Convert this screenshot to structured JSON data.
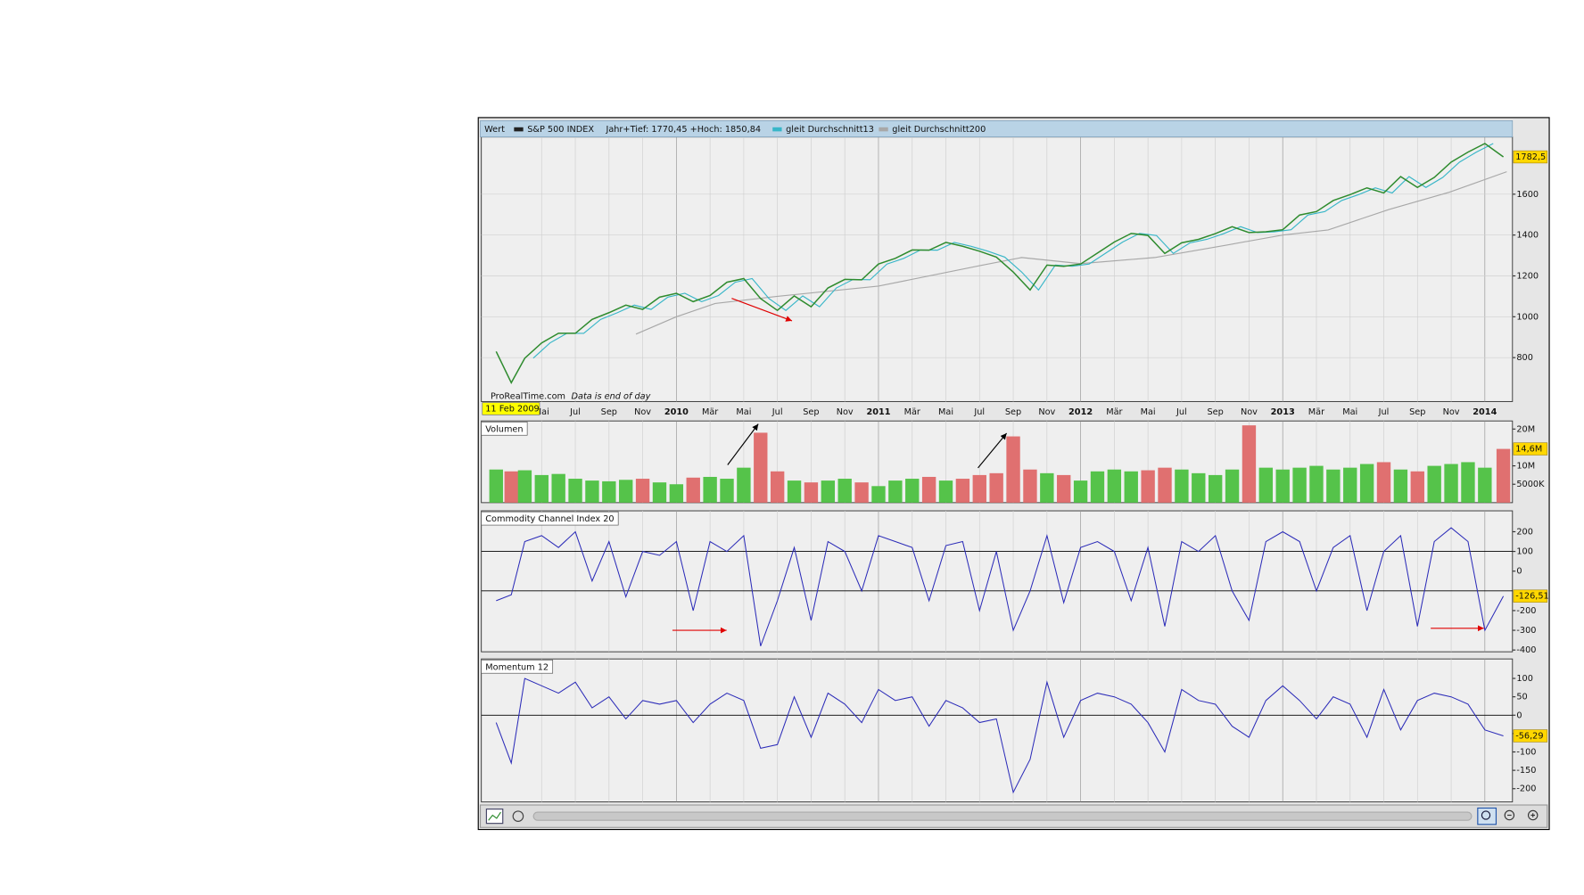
{
  "chart_data": [
    {
      "type": "line",
      "title": "Wert",
      "info": "Jahr+Tief: 1770,45 +Hoch: 1850,84",
      "cursor_label": "11 Feb 2009",
      "source": "ProRealTime.com",
      "source_note": "Data is end of day",
      "xlim": [
        0.42,
        61.64
      ],
      "xticks": [
        {
          "value": 4,
          "label": "Mai"
        },
        {
          "value": 6,
          "label": "Jul"
        },
        {
          "value": 8,
          "label": "Sep"
        },
        {
          "value": 10,
          "label": "Nov"
        },
        {
          "value": 12,
          "label": "2010"
        },
        {
          "value": 14,
          "label": "Mär"
        },
        {
          "value": 16,
          "label": "Mai"
        },
        {
          "value": 18,
          "label": "Jul"
        },
        {
          "value": 20,
          "label": "Sep"
        },
        {
          "value": 22,
          "label": "Nov"
        },
        {
          "value": 24,
          "label": "2011"
        },
        {
          "value": 26,
          "label": "Mär"
        },
        {
          "value": 28,
          "label": "Mai"
        },
        {
          "value": 30,
          "label": "Jul"
        },
        {
          "value": 32,
          "label": "Sep"
        },
        {
          "value": 34,
          "label": "Nov"
        },
        {
          "value": 36,
          "label": "2012"
        },
        {
          "value": 38,
          "label": "Mär"
        },
        {
          "value": 40,
          "label": "Mai"
        },
        {
          "value": 42,
          "label": "Jul"
        },
        {
          "value": 44,
          "label": "Sep"
        },
        {
          "value": 46,
          "label": "Nov"
        },
        {
          "value": 48,
          "label": "2013"
        },
        {
          "value": 50,
          "label": "Mär"
        },
        {
          "value": 52,
          "label": "Mai"
        },
        {
          "value": 54,
          "label": "Jul"
        },
        {
          "value": 56,
          "label": "Sep"
        },
        {
          "value": 58,
          "label": "Nov"
        },
        {
          "value": 60,
          "label": "2014"
        }
      ],
      "ylim": [
        585,
        1880
      ],
      "yticks": [
        800,
        1000,
        1200,
        1400,
        1600
      ],
      "grid": true,
      "last_label": "1782,5",
      "series": [
        {
          "name": "S&P 500 INDEX",
          "color": "#2e8b2e",
          "x": [
            1.3,
            2.2,
            3,
            4,
            5,
            6,
            7,
            8,
            9,
            10,
            11,
            12,
            13,
            14,
            15,
            16,
            17,
            18,
            19,
            20,
            21,
            22,
            23,
            24,
            25,
            26,
            27,
            28,
            29,
            30,
            31,
            32,
            33,
            34,
            35,
            36,
            37,
            38,
            39,
            40,
            41,
            42,
            43,
            44,
            45,
            46,
            47,
            48,
            49,
            50,
            51,
            52,
            53,
            54,
            55,
            56,
            57,
            58,
            59,
            60,
            61.1
          ],
          "values": [
            830,
            677,
            797,
            872,
            919,
            919,
            987,
            1020,
            1057,
            1036,
            1096,
            1115,
            1074,
            1104,
            1169,
            1187,
            1089,
            1031,
            1102,
            1049,
            1141,
            1183,
            1181,
            1258,
            1286,
            1327,
            1326,
            1364,
            1345,
            1321,
            1292,
            1219,
            1131,
            1253,
            1247,
            1258,
            1312,
            1366,
            1408,
            1398,
            1310,
            1362,
            1379,
            1407,
            1441,
            1412,
            1416,
            1426,
            1498,
            1515,
            1569,
            1598,
            1631,
            1606,
            1686,
            1633,
            1682,
            1757,
            1806,
            1848,
            1782.5
          ]
        },
        {
          "name": "gleit Durchschnitt13",
          "color": "#38b6c8",
          "x": [
            3.5,
            4.5,
            5.5,
            6.5,
            7.5,
            8.5,
            9.5,
            10.5,
            11.5,
            12.5,
            13.5,
            14.5,
            15.5,
            16.5,
            17.5,
            18.5,
            19.5,
            20.5,
            21.5,
            22.5,
            23.5,
            24.5,
            25.5,
            26.5,
            27.5,
            28.5,
            29.5,
            30.5,
            31.5,
            32.5,
            33.5,
            34.5,
            35.5,
            36.5,
            37.5,
            38.5,
            39.5,
            40.5,
            41.5,
            42.5,
            43.5,
            44.5,
            45.5,
            46.5,
            47.5,
            48.5,
            49.5,
            50.5,
            51.5,
            52.5,
            53.5,
            54.5,
            55.5,
            56.5,
            57.5,
            58.5,
            59.5,
            60.5
          ],
          "values": [
            797,
            872,
            919,
            919,
            987,
            1020,
            1057,
            1036,
            1096,
            1115,
            1074,
            1104,
            1169,
            1187,
            1089,
            1031,
            1102,
            1049,
            1141,
            1183,
            1181,
            1258,
            1286,
            1327,
            1326,
            1364,
            1345,
            1321,
            1292,
            1219,
            1131,
            1253,
            1247,
            1258,
            1312,
            1366,
            1408,
            1398,
            1310,
            1362,
            1379,
            1407,
            1441,
            1412,
            1416,
            1426,
            1498,
            1515,
            1569,
            1598,
            1631,
            1606,
            1686,
            1633,
            1682,
            1757,
            1806,
            1848
          ]
        },
        {
          "name": "gleit Durchschnitt200",
          "color": "#a8a8a8",
          "x": [
            9.6,
            12,
            14.3,
            18,
            24,
            30,
            32.5,
            36,
            40.4,
            44.6,
            48,
            50.7,
            54.3,
            57.9,
            61.3
          ],
          "values": [
            915,
            1000,
            1065,
            1100,
            1150,
            1250,
            1290,
            1260,
            1290,
            1350,
            1400,
            1425,
            1525,
            1610,
            1710
          ]
        }
      ]
    },
    {
      "type": "bar",
      "title": "Volumen",
      "xlim": [
        0.42,
        61.64
      ],
      "up_color": "#55c34a",
      "down_color": "#e07070",
      "ylim": [
        0,
        22200000
      ],
      "yticks": [
        {
          "value": 5000000,
          "label": "5000K"
        },
        {
          "value": 10000000,
          "label": "10M"
        },
        {
          "value": 20000000,
          "label": "20M"
        }
      ],
      "grid": false,
      "last_label": "14,6M",
      "x": [
        1.3,
        2.2,
        3,
        4,
        5,
        6,
        7,
        8,
        9,
        10,
        11,
        12,
        13,
        14,
        15,
        16,
        17,
        18,
        19,
        20,
        21,
        22,
        23,
        24,
        25,
        26,
        27,
        28,
        29,
        30,
        31,
        32,
        33,
        34,
        35,
        36,
        37,
        38,
        39,
        40,
        41,
        42,
        43,
        44,
        45,
        46,
        47,
        48,
        49,
        50,
        51,
        52,
        53,
        54,
        55,
        56,
        57,
        58,
        59,
        60,
        61.1
      ],
      "values": [
        9000000,
        8500000,
        8800000,
        7500000,
        7800000,
        6500000,
        6000000,
        5800000,
        6200000,
        6500000,
        5500000,
        5000000,
        6800000,
        7000000,
        6500000,
        9500000,
        19000000,
        8500000,
        6000000,
        5500000,
        6000000,
        6500000,
        5500000,
        4500000,
        6000000,
        6500000,
        7000000,
        6000000,
        6500000,
        7500000,
        8000000,
        18000000,
        9000000,
        8000000,
        7500000,
        6000000,
        8500000,
        9000000,
        8500000,
        8800000,
        9500000,
        9000000,
        8000000,
        7500000,
        9000000,
        21000000,
        9500000,
        9000000,
        9500000,
        10000000,
        9000000,
        9500000,
        10500000,
        11000000,
        9000000,
        8500000,
        10000000,
        10500000,
        11000000,
        9500000,
        14600000
      ]
    },
    {
      "type": "line",
      "title": "Commodity Channel Index 20",
      "xlim": [
        0.42,
        61.64
      ],
      "color": "#2b2bb8",
      "ylim": [
        -409,
        306
      ],
      "yticks": [
        200,
        100,
        0,
        -200,
        -300,
        -400
      ],
      "reference_lines": [
        100,
        -100
      ],
      "grid": false,
      "last_label": "-126,51",
      "x": [
        1.3,
        2.2,
        3,
        4,
        5,
        6,
        7,
        8,
        9,
        10,
        11,
        12,
        13,
        14,
        15,
        16,
        17,
        18,
        19,
        20,
        21,
        22,
        23,
        24,
        25,
        26,
        27,
        28,
        29,
        30,
        31,
        32,
        33,
        34,
        35,
        36,
        37,
        38,
        39,
        40,
        41,
        42,
        43,
        44,
        45,
        46,
        47,
        48,
        49,
        50,
        51,
        52,
        53,
        54,
        55,
        56,
        57,
        58,
        59,
        60,
        61.1
      ],
      "values": [
        -150,
        -120,
        150,
        180,
        120,
        200,
        -50,
        150,
        -130,
        100,
        80,
        150,
        -200,
        150,
        100,
        180,
        -380,
        -150,
        120,
        -250,
        150,
        100,
        -100,
        180,
        150,
        120,
        -150,
        130,
        150,
        -200,
        100,
        -300,
        -100,
        180,
        -160,
        120,
        150,
        100,
        -150,
        120,
        -280,
        150,
        100,
        180,
        -100,
        -250,
        150,
        200,
        150,
        -100,
        120,
        180,
        -200,
        100,
        180,
        -280,
        150,
        220,
        150,
        -300,
        -126.51
      ]
    },
    {
      "type": "line",
      "title": "Momentum 12",
      "xlim": [
        0.42,
        61.64
      ],
      "color": "#2b2bb8",
      "ylim": [
        -236,
        153
      ],
      "yticks": [
        100,
        50,
        0,
        -50,
        -100,
        -150,
        -200
      ],
      "reference_lines": [
        0
      ],
      "grid": false,
      "last_label": "-56,29",
      "x": [
        1.3,
        2.2,
        3,
        4,
        5,
        6,
        7,
        8,
        9,
        10,
        11,
        12,
        13,
        14,
        15,
        16,
        17,
        18,
        19,
        20,
        21,
        22,
        23,
        24,
        25,
        26,
        27,
        28,
        29,
        30,
        31,
        32,
        33,
        34,
        35,
        36,
        37,
        38,
        39,
        40,
        41,
        42,
        43,
        44,
        45,
        46,
        47,
        48,
        49,
        50,
        51,
        52,
        53,
        54,
        55,
        56,
        57,
        58,
        59,
        60,
        61.1
      ],
      "values": [
        -20,
        -130,
        100,
        80,
        60,
        90,
        20,
        50,
        -10,
        40,
        30,
        40,
        -20,
        30,
        60,
        40,
        -90,
        -80,
        50,
        -60,
        60,
        30,
        -20,
        70,
        40,
        50,
        -30,
        40,
        20,
        -20,
        -10,
        -210,
        -120,
        90,
        -60,
        40,
        60,
        50,
        30,
        -20,
        -100,
        70,
        40,
        30,
        -30,
        -60,
        40,
        80,
        40,
        -10,
        50,
        30,
        -60,
        70,
        -40,
        40,
        60,
        50,
        30,
        -40,
        -56.29
      ]
    }
  ]
}
